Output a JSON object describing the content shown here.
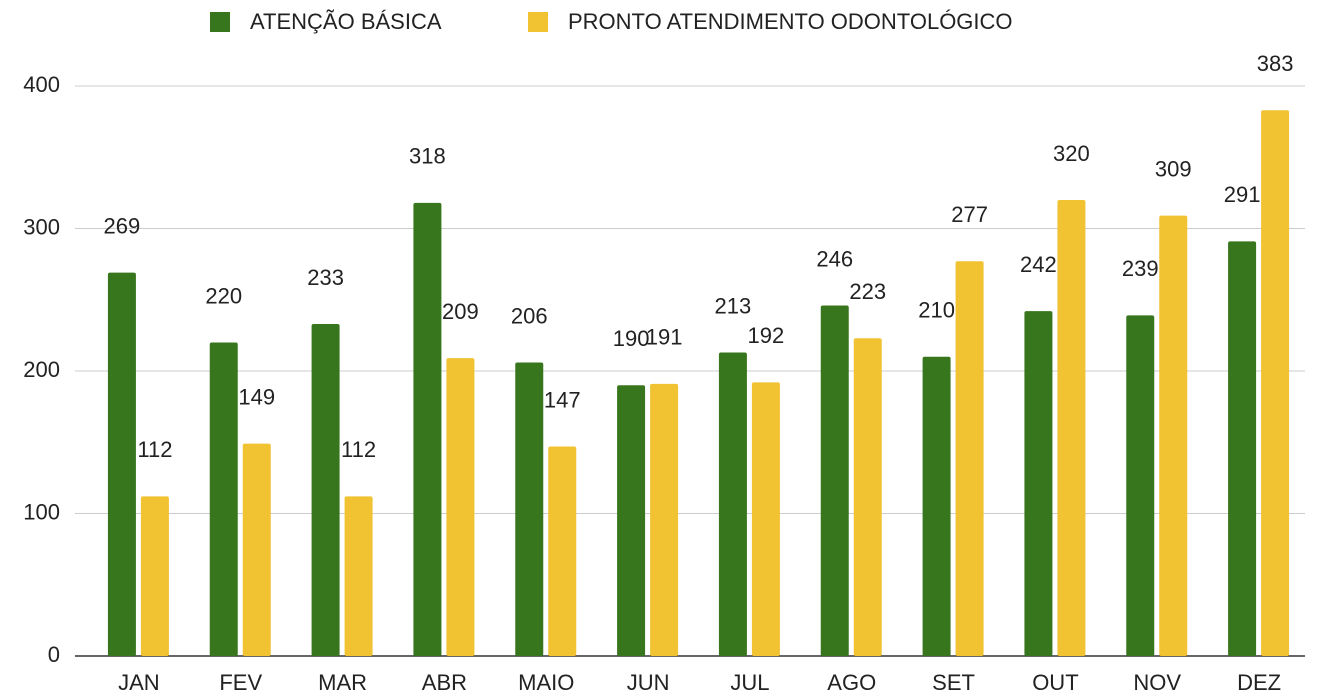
{
  "chart_data": {
    "type": "bar",
    "categories": [
      "JAN",
      "FEV",
      "MAR",
      "ABR",
      "MAIO",
      "JUN",
      "JUL",
      "AGO",
      "SET",
      "OUT",
      "NOV",
      "DEZ"
    ],
    "series": [
      {
        "name": "ATENÇÃO BÁSICA",
        "color": "#38761d",
        "values": [
          269,
          220,
          233,
          318,
          206,
          190,
          213,
          246,
          210,
          242,
          239,
          291
        ]
      },
      {
        "name": "PRONTO ATENDIMENTO ODONTOLÓGICO",
        "color": "#f1c232",
        "values": [
          112,
          149,
          112,
          209,
          147,
          191,
          192,
          223,
          277,
          320,
          309,
          383
        ]
      }
    ],
    "ylim": [
      0,
      400
    ],
    "yticks": [
      0,
      100,
      200,
      300,
      400
    ],
    "grid": true,
    "legend": "top"
  }
}
